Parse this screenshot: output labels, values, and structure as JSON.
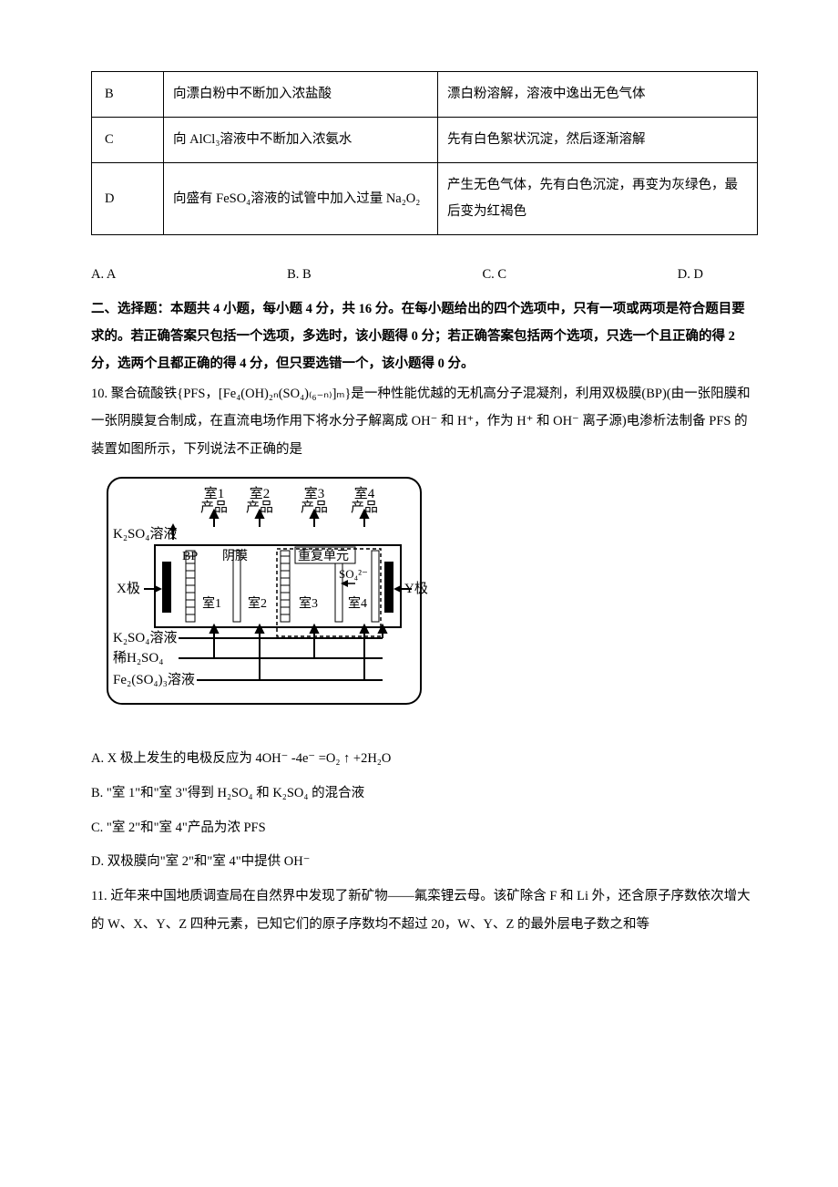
{
  "table": {
    "rows": [
      {
        "label": "B",
        "operation": "向漂白粉中不断加入浓盐酸",
        "phenomenon": "漂白粉溶解，溶液中逸出无色气体"
      },
      {
        "label": "C",
        "operation": "向 AlCl₃溶液中不断加入浓氨水",
        "phenomenon": "先有白色絮状沉淀，然后逐渐溶解"
      },
      {
        "label": "D",
        "operation": "向盛有 FeSO₄溶液的试管中加入过量 Na₂O₂",
        "phenomenon": "产生无色气体，先有白色沉淀，再变为灰绿色，最后变为红褐色"
      }
    ]
  },
  "choices9": {
    "a": "A. A",
    "b": "B. B",
    "c": "C. C",
    "d": "D. D"
  },
  "section2": {
    "heading": "二、选择题：本题共 4 小题，每小题 4 分，共 16 分。在每小题给出的四个选项中，只有一项或两项是符合题目要求的。若正确答案只包括一个选项，多选时，该小题得 0 分；若正确答案包括两个选项，只选一个且正确的得 2 分，选两个且都正确的得 4 分，但只要选错一个，该小题得 0 分。"
  },
  "q10": {
    "stem_pre": "10. 聚合硫酸铁{PFS，",
    "formula": "[Fe₄(OH)₂ₙ(SO₄)₍₆₋ₙ₎]ₘ",
    "stem_mid": "}是一种性能优越的无机高分子混凝剂，利用双极膜(BP)(由一张阳膜和一张阴膜复合制成，在直流电场作用下将水分子解离成 OH⁻ 和 H⁺，作为 H⁺ 和 OH⁻ 离子源)电渗析法制备 PFS 的装置如图所示，下列说法不正确的是",
    "optA": "A. X 极上发生的电极反应为 4OH⁻ -4e⁻ =O₂ ↑ +2H₂O",
    "optB": "B. \"室 1\"和\"室 3\"得到 H₂SO₄ 和 K₂SO₄ 的混合液",
    "optC": "C. \"室 2\"和\"室 4\"产品为浓 PFS",
    "optD": "D. 双极膜向\"室 2\"和\"室 4\"中提供 OH⁻"
  },
  "diagram": {
    "labels": {
      "room1_top": "室1\n产品",
      "room2_top": "室2\n产品",
      "room3_top": "室3\n产品",
      "room4_top": "室4\n产品",
      "k2so4": "K₂SO₄溶液",
      "bp": "BP",
      "yinmo": "阴膜",
      "repeat": "重复单元",
      "xpole": "X极",
      "ypole": "Y极",
      "room1": "室1",
      "room2": "室2",
      "room3": "室3",
      "room4": "室4",
      "so4": "SO₄²⁻",
      "h2so4": "稀H₂SO₄",
      "fe2so43": "Fe₂(SO₄)₃溶液"
    },
    "stroke": "#000000",
    "font": "SimSun"
  },
  "q11": {
    "stem": "11. 近年来中国地质调查局在自然界中发现了新矿物——氟栾锂云母。该矿除含 F 和 Li 外，还含原子序数依次增大的 W、X、Y、Z 四种元素，已知它们的原子序数均不超过 20，W、Y、Z 的最外层电子数之和等"
  }
}
